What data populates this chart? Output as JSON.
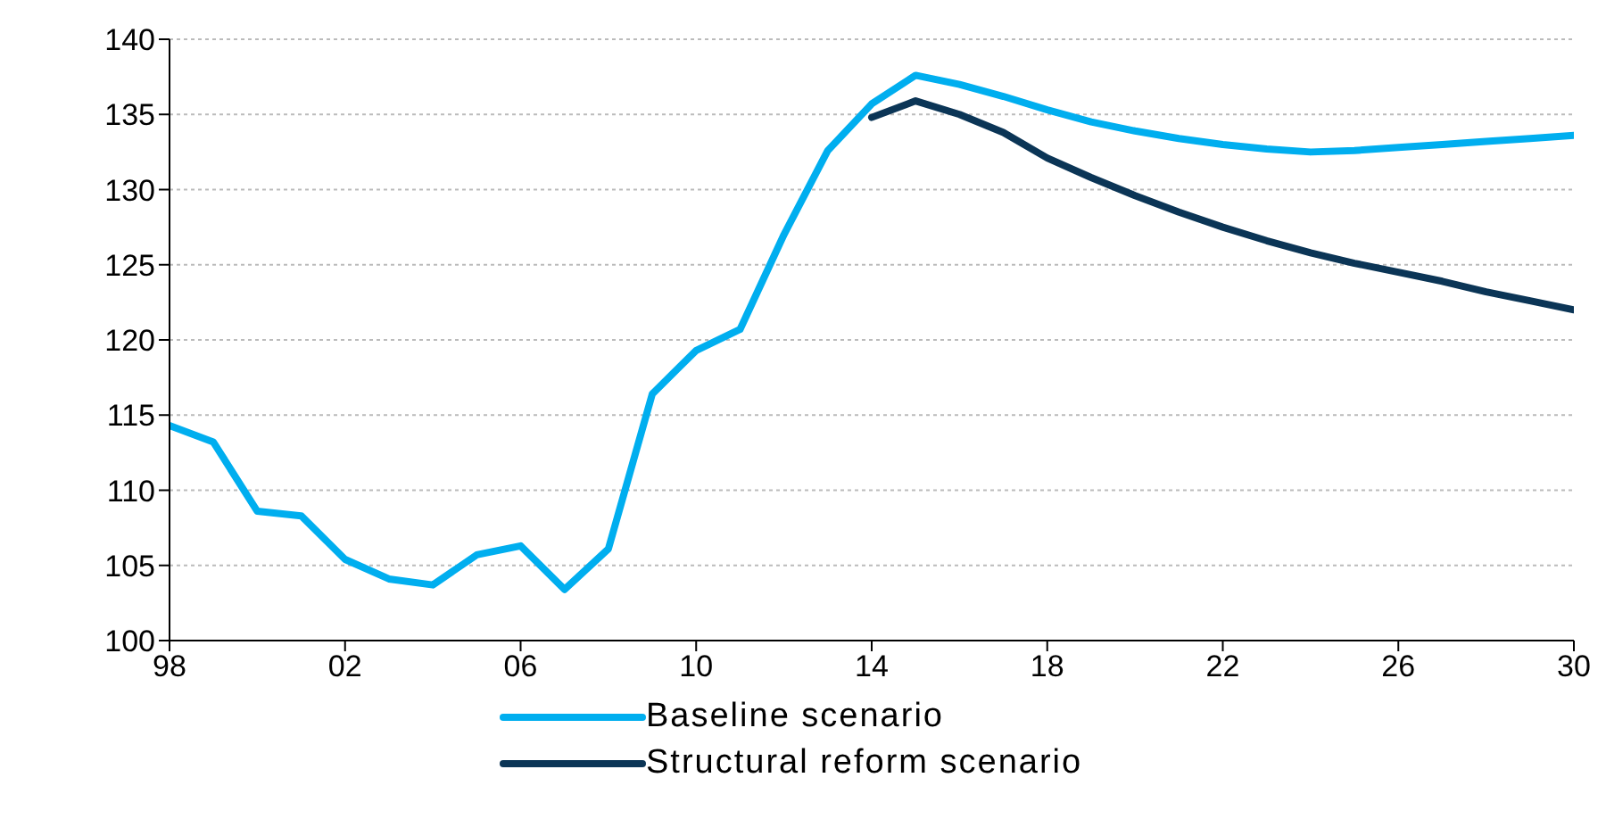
{
  "chart_data": {
    "type": "line",
    "x": [
      1998,
      1999,
      2000,
      2001,
      2002,
      2003,
      2004,
      2005,
      2006,
      2007,
      2008,
      2009,
      2010,
      2011,
      2012,
      2013,
      2014,
      2015,
      2016,
      2017,
      2018,
      2019,
      2020,
      2021,
      2022,
      2023,
      2024,
      2025,
      2026,
      2027,
      2028,
      2029,
      2030
    ],
    "series": [
      {
        "name": "Baseline scenario",
        "color": "#00aeef",
        "values": [
          114.3,
          113.2,
          108.6,
          108.3,
          105.4,
          104.1,
          103.7,
          105.7,
          106.3,
          103.4,
          106.1,
          116.4,
          119.3,
          120.7,
          127.0,
          132.6,
          135.7,
          137.6,
          137.0,
          136.2,
          135.3,
          134.5,
          133.9,
          133.4,
          133.0,
          132.7,
          132.5,
          132.6,
          132.8,
          133.0,
          133.2,
          133.4,
          133.6
        ]
      },
      {
        "name": "Structural reform scenario",
        "color": "#0b3556",
        "x": [
          2014,
          2015,
          2016,
          2017,
          2018,
          2019,
          2020,
          2021,
          2022,
          2023,
          2024,
          2025,
          2026,
          2027,
          2028,
          2029,
          2030
        ],
        "values": [
          134.8,
          135.9,
          135.0,
          133.8,
          132.1,
          130.8,
          129.6,
          128.5,
          127.5,
          126.6,
          125.8,
          125.1,
          124.5,
          123.9,
          123.2,
          122.6,
          122.0
        ]
      }
    ],
    "xlim": [
      1998,
      2030
    ],
    "xticks": [
      {
        "value": 1998,
        "label": "98"
      },
      {
        "value": 2002,
        "label": "02"
      },
      {
        "value": 2006,
        "label": "06"
      },
      {
        "value": 2010,
        "label": "10"
      },
      {
        "value": 2014,
        "label": "14"
      },
      {
        "value": 2018,
        "label": "18"
      },
      {
        "value": 2022,
        "label": "22"
      },
      {
        "value": 2026,
        "label": "26"
      },
      {
        "value": 2030,
        "label": "30"
      }
    ],
    "ylim": [
      100,
      140
    ],
    "yticks": [
      100,
      105,
      110,
      115,
      120,
      125,
      130,
      135,
      140
    ],
    "grid": "y",
    "legend": "bottom",
    "marker": "none",
    "line_style": "solid"
  }
}
